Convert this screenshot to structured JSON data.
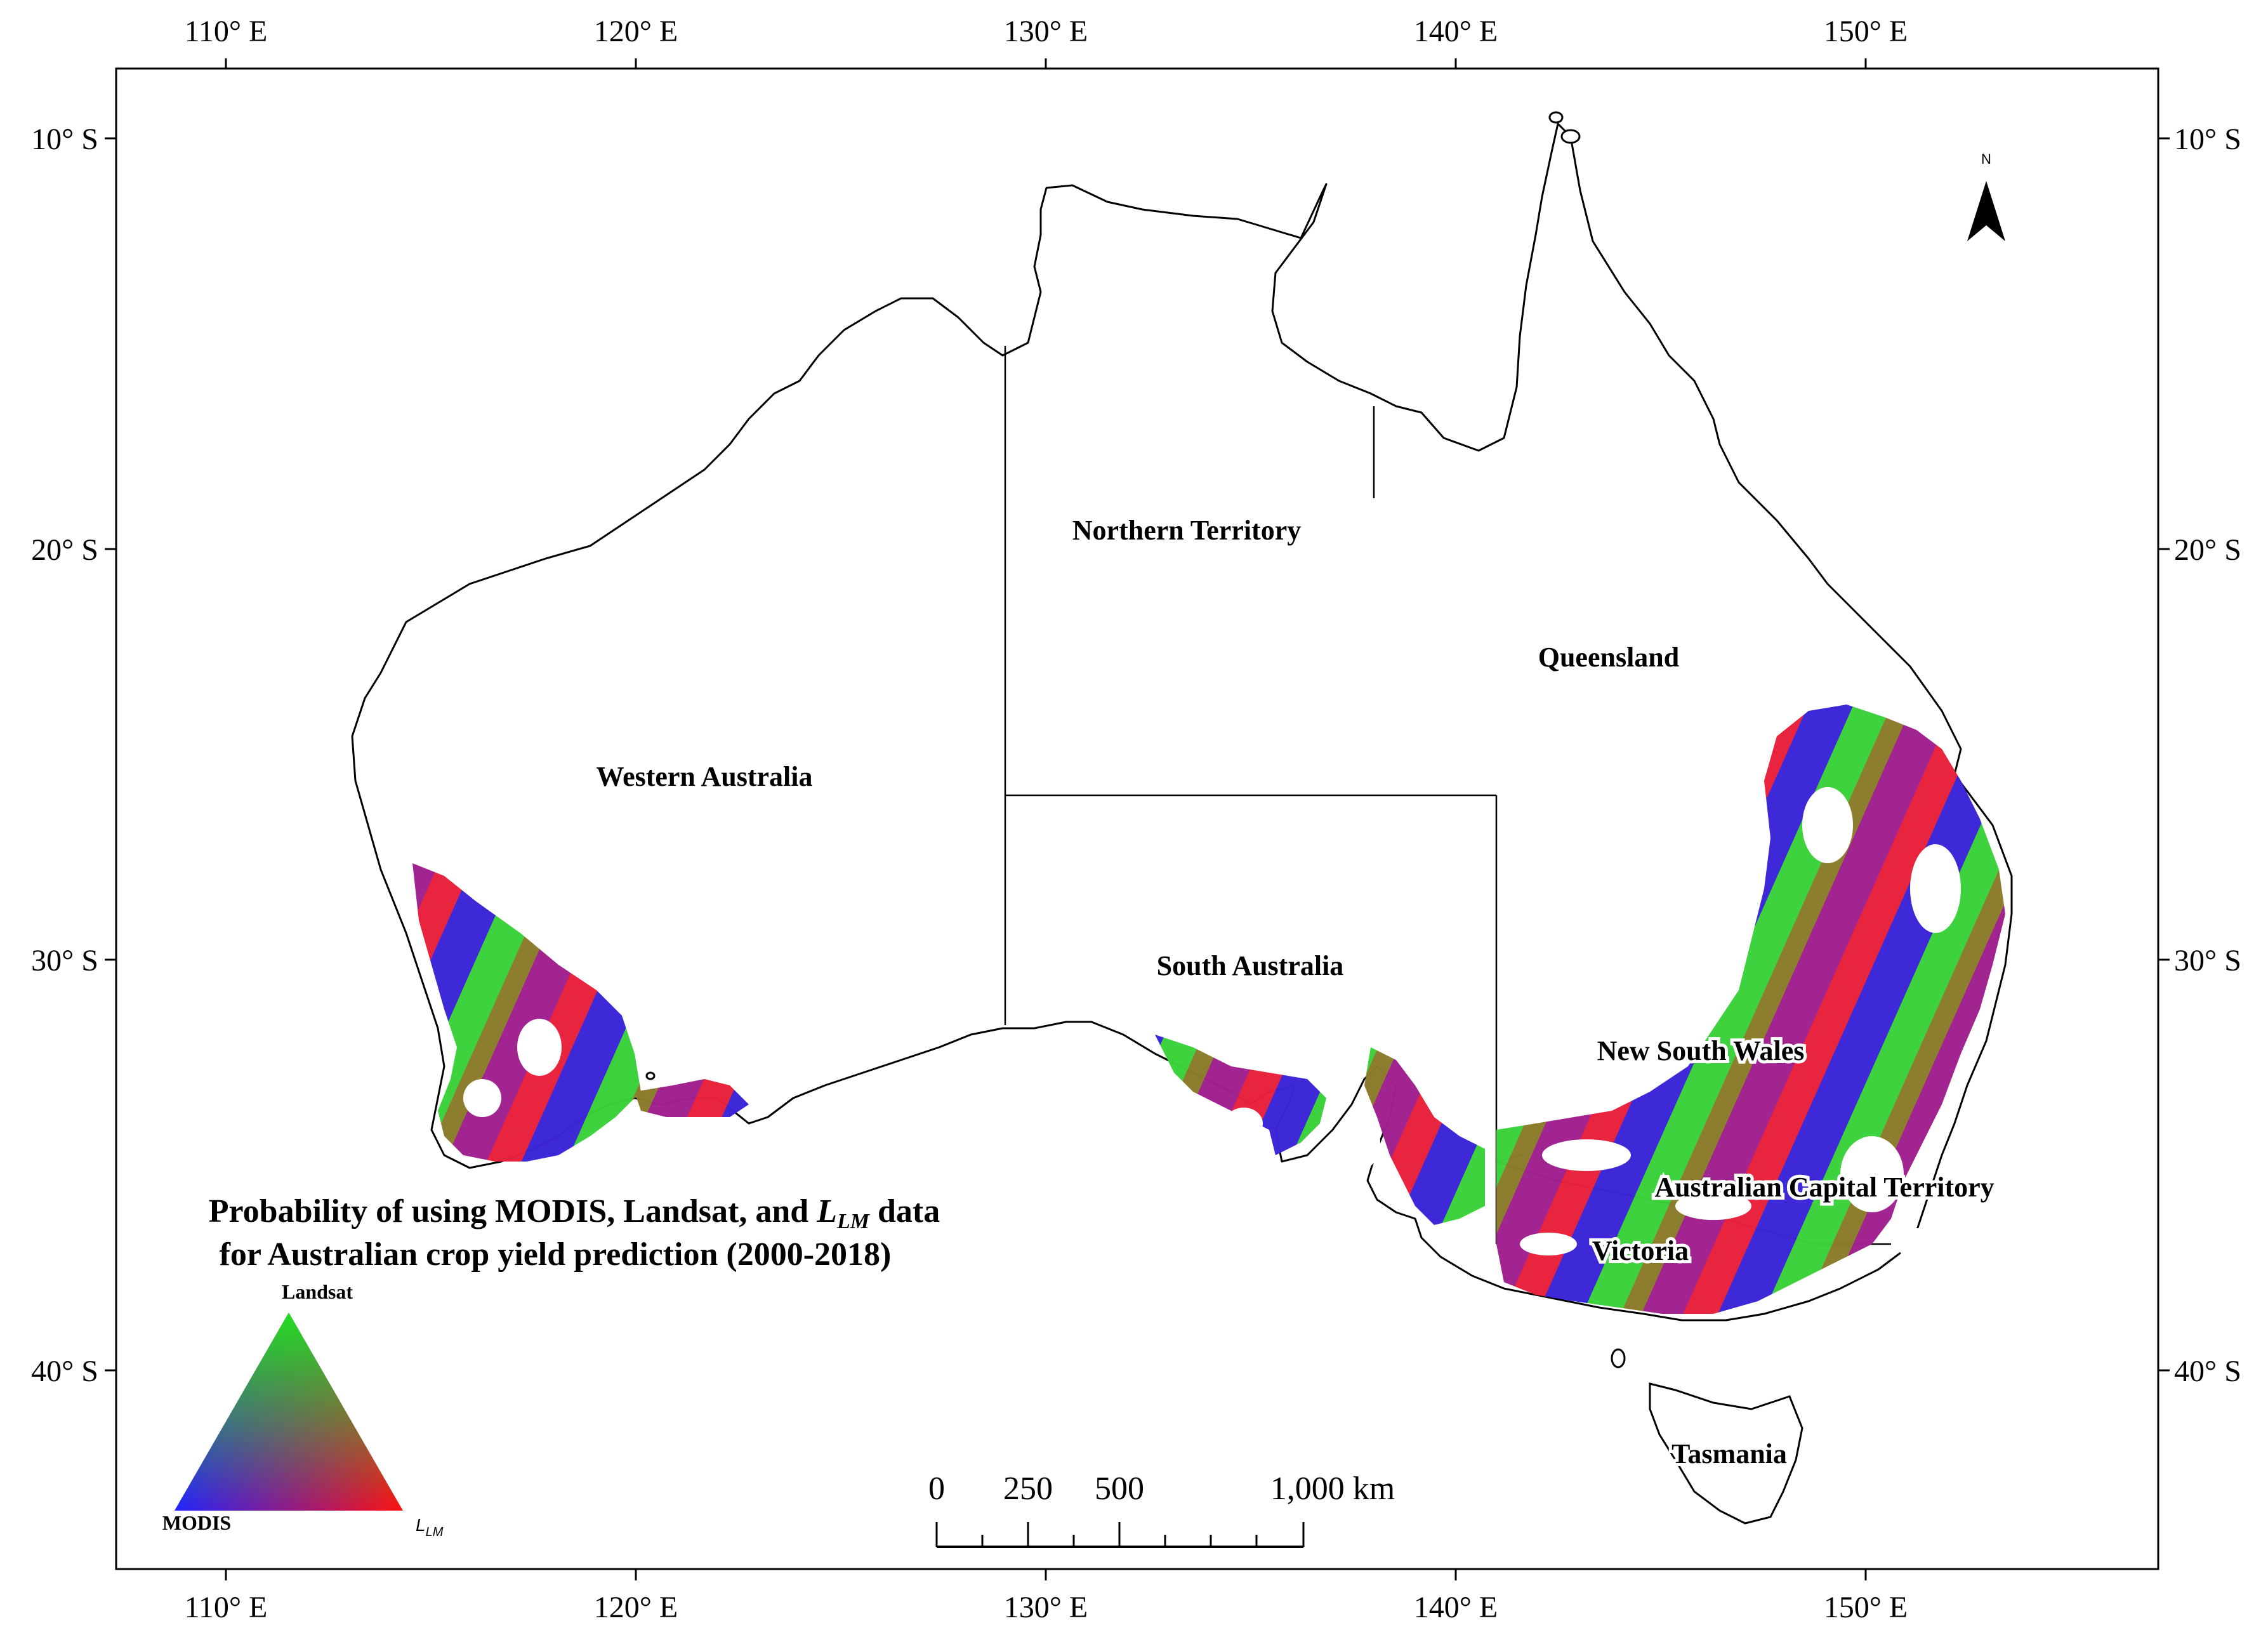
{
  "map": {
    "title_line1_prefix": "Probability of using MODIS, Landsat, and ",
    "title_line1_var": "L",
    "title_line1_sub": "LM",
    "title_line1_suffix": " data",
    "title_line2": "for Australian crop yield prediction (2000-2018)",
    "north_label": "N",
    "longitude_ticks": [
      "110° E",
      "120° E",
      "130° E",
      "140° E",
      "150° E"
    ],
    "latitude_ticks": [
      "10° S",
      "20° S",
      "30° S",
      "40° S"
    ],
    "regions": [
      "Northern Territory",
      "Queensland",
      "Western Australia",
      "South Australia",
      "New South Wales",
      "Australian Capital Territory",
      "Victoria",
      "Tasmania"
    ]
  },
  "legend": {
    "top_label": "Landsat",
    "left_label": "MODIS",
    "right_label_var": "L",
    "right_label_sub": "LM",
    "corner_colors": {
      "top": "#22dd22",
      "left": "#2222ff",
      "right": "#ff1111"
    }
  },
  "scale_bar": {
    "labels": [
      "0",
      "250",
      "500",
      "1,000 km"
    ]
  },
  "colors": {
    "modis": "#1f1fff",
    "landsat": "#33d633",
    "llm": "#ff1f1f",
    "mixed_purple": "#9a1f9a",
    "mixed_olive": "#8a7a22"
  }
}
